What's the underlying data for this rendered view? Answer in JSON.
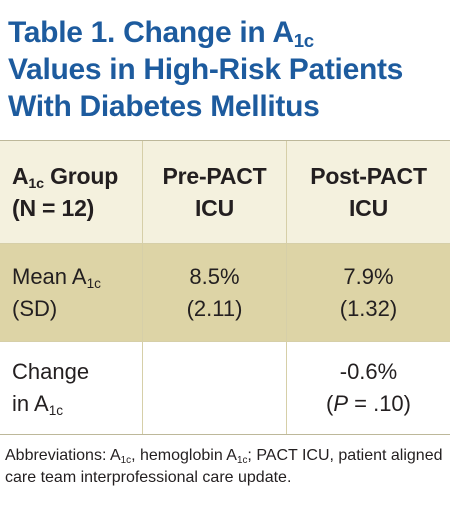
{
  "title": {
    "line1_pre": "Table 1. Change in A",
    "line1_sub": "1c",
    "line2": "Values in High-Risk Patients",
    "line3": "With Diabetes Mellitus"
  },
  "table": {
    "header": {
      "col1_line1_pre": "A",
      "col1_line1_sub": "1c",
      "col1_line1_post": " Group",
      "col1_line2": "(N = 12)",
      "col2_line1": "Pre-PACT",
      "col2_line2": "ICU",
      "col3_line1": "Post-PACT",
      "col3_line2": "ICU"
    },
    "mean_row": {
      "label_line1_pre": "Mean A",
      "label_line1_sub": "1c",
      "label_line2": "(SD)",
      "pre_value": "8.5%",
      "pre_sd": "(2.11)",
      "post_value": "7.9%",
      "post_sd": "(1.32)"
    },
    "change_row": {
      "label_line1": "Change",
      "label_line2_pre": "in A",
      "label_line2_sub": "1c",
      "pre_value": "",
      "post_value": "-0.6%",
      "post_p_open": "(",
      "post_p_italic": "P",
      "post_p_rest": " = .10)"
    }
  },
  "footnote": {
    "part1": "Abbreviations: A",
    "sub1": "1c",
    "part2": ", hemoglobin A",
    "sub2": "1c",
    "part3": "; PACT ICU, patient aligned care team interprofessional care update."
  },
  "colors": {
    "title": "#1d5b9e",
    "header_bg": "#f4f1de",
    "mean_row_bg": "#ddd4a6",
    "rule": "#bdb89a"
  }
}
